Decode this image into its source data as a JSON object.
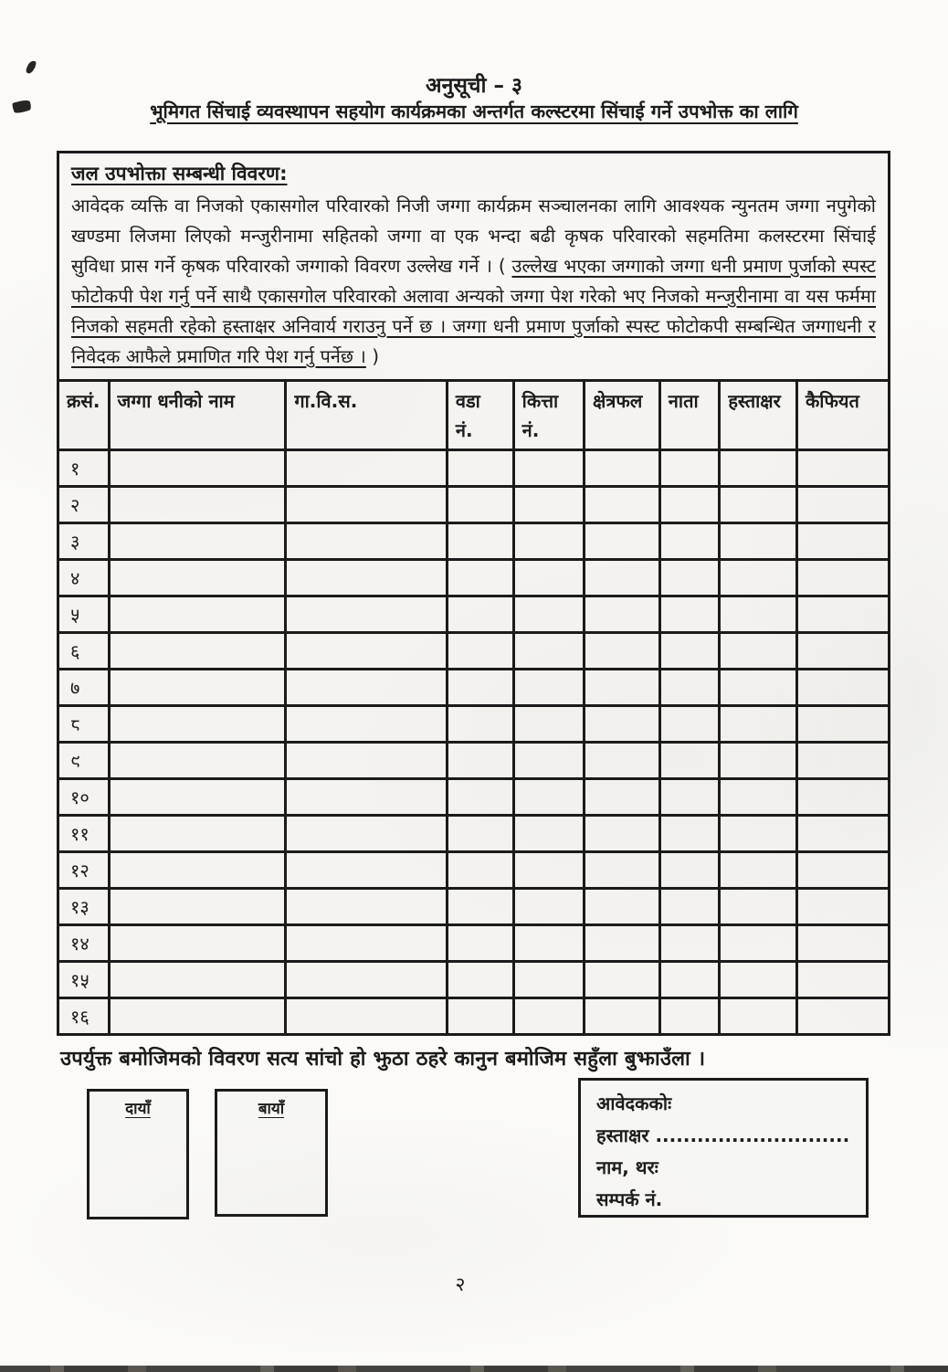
{
  "colors": {
    "ink": "#1c1c1c",
    "paper": "#fbfaf7"
  },
  "header": {
    "annex_title": "अनुसूची – ३",
    "subtitle": "भूमिगत सिंचाई व्यवस्थापन सहयोग कार्यक्रमका अन्तर्गत कल्स्टरमा सिंचाई गर्ने उपभोक्त का लागि"
  },
  "details_box": {
    "heading": "जल उपभोक्ता सम्बन्धी विवरण:",
    "para_normal": "आवेदक व्यक्ति वा निजको एकासगोल परिवारको निजी जग्गा कार्यक्रम सञ्चालनका लागि आवश्यक न्युनतम जग्गा नपुगेको खण्डमा लिजमा लिएको मन्जुरीनामा सहितको जग्गा वा एक भन्दा बढी कृषक परिवारको सहमतिमा कलस्टरमा सिंचाई सुविधा प्रास गर्ने कृषक परिवारको जग्गाको विवरण उल्लेख गर्ने । ( ",
    "para_underlined": "उल्लेख भएका जग्गाको जग्गा धनी प्रमाण पुर्जाको स्पस्ट फोटोकपी पेश गर्नु पर्ने साथै एकासगोल परिवारको अलावा अन्यको जग्गा पेश गरेको भए निजको मन्जुरीनामा वा यस फर्ममा निजको सहमती रहेको हस्ताक्षर अनिवार्य गराउनु पर्ने छ । जग्गा धनी प्रमाण पुर्जाको स्पस्ट फोटोकपी सम्बन्धित जग्गाधनी र निवेदक आफैले प्रमाणित गरि पेश गर्नु पर्नेछ ।",
    "para_close": " )"
  },
  "table": {
    "headers": [
      "क्रसं.",
      "जग्गा धनीको नाम",
      "गा.वि.स.",
      "वडा\nनं.",
      "कित्ता\nनं.",
      "क्षेत्रफल",
      "नाता",
      "हस्ताक्षर",
      "कैफियत"
    ],
    "rows": [
      "१",
      "२",
      "३",
      "४",
      "५",
      "६",
      "७",
      "८",
      "९",
      "१०",
      "११",
      "१२",
      "१३",
      "१४",
      "१५",
      "१६"
    ]
  },
  "footer": {
    "declaration": "उपर्युक्त बमोजिमको विवरण सत्य सांचो हो झुठा ठहरे कानुन बमोजिम सहुँला बुझाउँला ।",
    "right_thumb_label": "दायाँ",
    "left_thumb_label": "बायाँ",
    "applicant": {
      "title": "आवेदककोः",
      "signature_label": "हस्ताक्षर ............................",
      "name_label": "नाम, थरः",
      "contact_label": "सम्पर्क नं."
    },
    "page_number": "२"
  }
}
